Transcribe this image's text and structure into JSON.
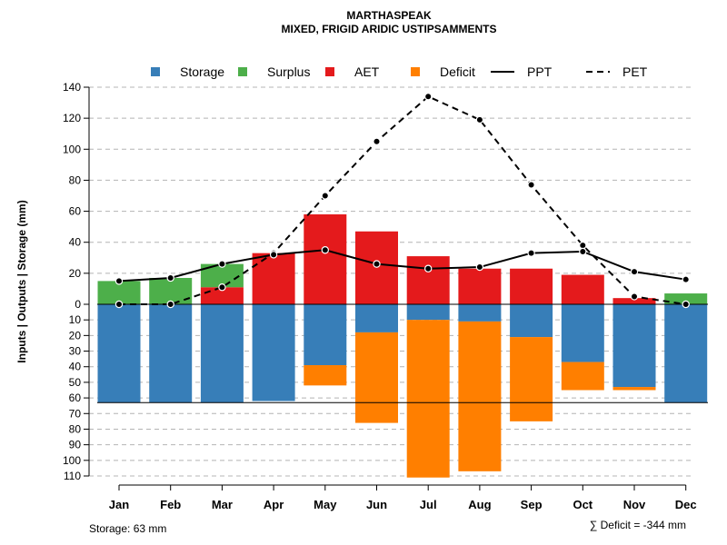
{
  "chart_data": {
    "type": "bar",
    "title": "MARTHASPEAK",
    "subtitle": "MIXED, FRIGID ARIDIC USTIPSAMMENTS",
    "ylabel": "Inputs | Outputs | Storage    (mm)",
    "categories": [
      "Jan",
      "Feb",
      "Mar",
      "Apr",
      "May",
      "Jun",
      "Jul",
      "Aug",
      "Sep",
      "Oct",
      "Nov",
      "Dec"
    ],
    "upper_axis": {
      "range": [
        0,
        140
      ],
      "ticks": [
        "0",
        "20",
        "40",
        "60",
        "80",
        "100",
        "120",
        "140"
      ]
    },
    "lower_axis": {
      "range": [
        0,
        110
      ],
      "ticks": [
        "0",
        "10",
        "20",
        "30",
        "40",
        "50",
        "60",
        "70",
        "80",
        "90",
        "100",
        "110"
      ]
    },
    "legend": [
      {
        "key": "storage",
        "label": "Storage",
        "color": "#377EB8",
        "kind": "box"
      },
      {
        "key": "surplus",
        "label": "Surplus",
        "color": "#4DAF4A",
        "kind": "box"
      },
      {
        "key": "aet",
        "label": "AET",
        "color": "#E41A1C",
        "kind": "box"
      },
      {
        "key": "deficit",
        "label": "Deficit",
        "color": "#FF7F00",
        "kind": "box"
      },
      {
        "key": "ppt",
        "label": "PPT",
        "color": "#000000",
        "kind": "solid"
      },
      {
        "key": "pet",
        "label": "PET",
        "color": "#000000",
        "kind": "dashed"
      }
    ],
    "series": [
      {
        "name": "AET",
        "values": [
          0,
          0,
          11,
          33,
          58,
          47,
          31,
          23,
          23,
          19,
          4,
          0
        ]
      },
      {
        "name": "Surplus",
        "values": [
          15,
          17,
          15,
          0,
          0,
          0,
          0,
          0,
          0,
          0,
          0,
          7
        ]
      },
      {
        "name": "Storage",
        "values": [
          63,
          63,
          63,
          62,
          39,
          18,
          10,
          11,
          21,
          37,
          53,
          63
        ]
      },
      {
        "name": "Deficit",
        "values": [
          0,
          0,
          0,
          0,
          13,
          58,
          101,
          96,
          54,
          18,
          2,
          0
        ]
      },
      {
        "name": "PPT",
        "values": [
          15,
          17,
          26,
          32,
          35,
          26,
          23,
          24,
          33,
          34,
          21,
          16
        ]
      },
      {
        "name": "PET",
        "values": [
          0,
          0,
          11,
          33,
          70,
          105,
          134,
          119,
          77,
          38,
          5,
          0
        ]
      }
    ],
    "storage_line": 63,
    "grid": true
  },
  "footer": {
    "storage_text": "Storage: 63 mm",
    "deficit_text": "∑ Deficit = -344 mm"
  }
}
